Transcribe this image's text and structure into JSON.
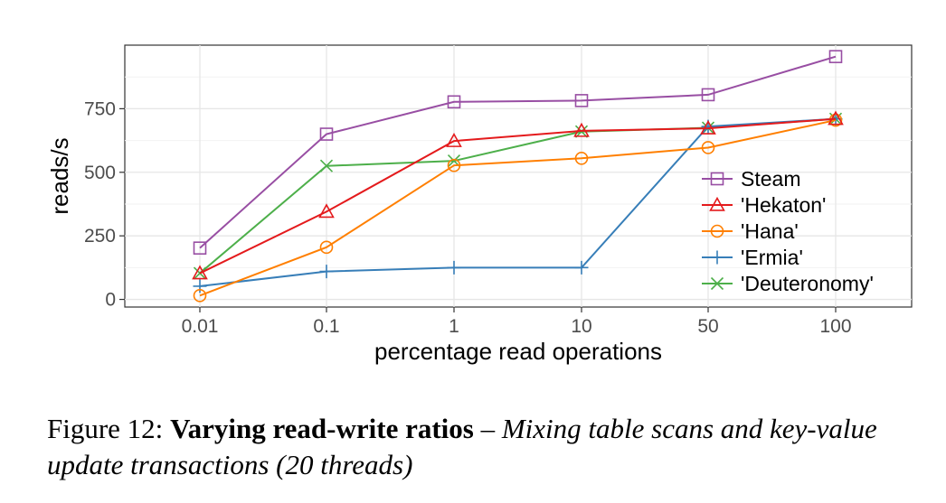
{
  "chart_data": {
    "type": "line",
    "xlabel": "percentage read operations",
    "ylabel": "reads/s",
    "categories": [
      "0.01",
      "0.1",
      "1",
      "10",
      "50",
      "100"
    ],
    "yticks": [
      0,
      250,
      500,
      750
    ],
    "ylim": [
      -30,
      1000
    ],
    "grid": true,
    "legend_position": "right",
    "series": [
      {
        "name": "Steam",
        "color": "#984ea3",
        "marker": "square",
        "values": [
          202,
          650,
          777,
          782,
          805,
          955
        ]
      },
      {
        "name": "'Hekaton'",
        "color": "#e41a1c",
        "marker": "triangle",
        "values": [
          103,
          345,
          623,
          663,
          673,
          710
        ]
      },
      {
        "name": "'Hana'",
        "color": "#ff7f00",
        "marker": "circle",
        "values": [
          15,
          205,
          527,
          555,
          597,
          705
        ]
      },
      {
        "name": "'Ermia'",
        "color": "#377eb8",
        "marker": "plus",
        "values": [
          52,
          110,
          125,
          125,
          680,
          710
        ]
      },
      {
        "name": "'Deuteronomy'",
        "color": "#4daf4a",
        "marker": "x",
        "values": [
          103,
          525,
          545,
          660,
          675,
          710
        ]
      }
    ]
  },
  "caption": {
    "prefix": "Figure 12:",
    "title": "Varying read-write ratios",
    "dash": "–",
    "desc": "Mixing table scans and key-value update transactions (20 threads)"
  }
}
